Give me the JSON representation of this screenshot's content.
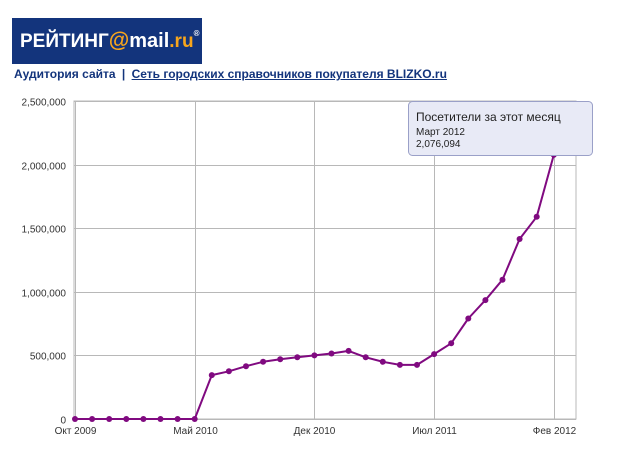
{
  "header": {
    "logo_main": "РЕЙТИНГ",
    "logo_at": "@",
    "logo_mail": "mail",
    "logo_ru": ".ru",
    "logo_reg": "®"
  },
  "breadcrumb": {
    "section": "Аудитория сайта",
    "separator": "|",
    "site_link": "Сеть городских справочников покупателя BLIZKO.ru"
  },
  "tooltip": {
    "title": "Посетители за этот месяц",
    "month": "Март 2012",
    "value": "2,076,094"
  },
  "colors": {
    "line": "#800a80",
    "grid": "#b8b8b8",
    "tooltip_bg": "#e8eaf6",
    "tooltip_border": "#9aa0c8"
  },
  "chart_data": {
    "type": "line",
    "ylim": [
      0,
      2500000
    ],
    "y_ticks": [
      0,
      500000,
      1000000,
      1500000,
      2000000,
      2500000
    ],
    "y_tick_labels": [
      "0",
      "500,000",
      "1,000,000",
      "1,500,000",
      "2,000,000",
      "2,500,000"
    ],
    "x_tick_labels": [
      "Окт 2009",
      "Май 2010",
      "Дек 2010",
      "Июл 2011",
      "Фев 2012"
    ],
    "x_tick_index": [
      0,
      7,
      14,
      21,
      28
    ],
    "grid": true,
    "x": [
      "Окт 2009",
      "Ноя 2009",
      "Дек 2009",
      "Янв 2010",
      "Фев 2010",
      "Мар 2010",
      "Апр 2010",
      "Май 2010",
      "Июн 2010",
      "Июл 2010",
      "Авг 2010",
      "Сен 2010",
      "Окт 2010",
      "Ноя 2010",
      "Дек 2010",
      "Янв 2011",
      "Фев 2011",
      "Мар 2011",
      "Апр 2011",
      "Май 2011",
      "Июн 2011",
      "Июл 2011",
      "Авг 2011",
      "Сен 2011",
      "Окт 2011",
      "Ноя 2011",
      "Дек 2011",
      "Янв 2012",
      "Фев 2012",
      "Мар 2012"
    ],
    "series": [
      {
        "values": [
          0,
          0,
          0,
          0,
          0,
          0,
          0,
          0,
          345000,
          375000,
          415000,
          450000,
          470000,
          485000,
          500000,
          515000,
          535000,
          485000,
          450000,
          425000,
          425000,
          510000,
          595000,
          790000,
          935000,
          1095000,
          1415000,
          1590000,
          2076094,
          2076094
        ]
      }
    ]
  }
}
